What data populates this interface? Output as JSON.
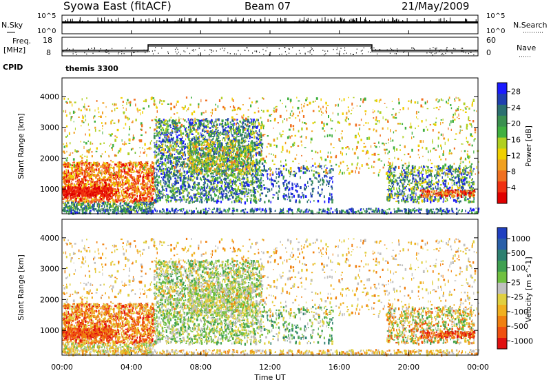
{
  "header": {
    "station": "Syowa East (fitACF)",
    "beam": "Beam 07",
    "date": "21/May/2009"
  },
  "panels": {
    "nsky": {
      "label": "N.Sky",
      "top": "10^5",
      "bottom": "10^0",
      "right_top": "10^5",
      "right_bottom": "10^0",
      "right_label": "N.Search"
    },
    "freq": {
      "label": "Freq.",
      "unit": "[MHz]",
      "top": "18",
      "bottom": "8",
      "right_top": "60",
      "right_bottom": "0",
      "right_label": "Nave"
    },
    "cpid": {
      "label": "CPID",
      "value": "themis 3300"
    }
  },
  "chart_data": [
    {
      "type": "heatmap",
      "name": "power",
      "ylabel": "Slant Range [km]",
      "xlabel": "Time UT",
      "yticks": [
        "1000",
        "2000",
        "3000",
        "4000"
      ],
      "ylim": [
        200,
        4600
      ],
      "colorbar": {
        "label": "Power [dB]",
        "ticks": [
          "4",
          "8",
          "12",
          "16",
          "20",
          "24",
          "28"
        ],
        "colors": [
          "#1a1aff",
          "#1f3fb0",
          "#2b7070",
          "#3a9050",
          "#40b040",
          "#b0d020",
          "#f0d000",
          "#f0a020",
          "#f07020",
          "#f03010",
          "#e00000"
        ]
      }
    },
    {
      "type": "heatmap",
      "name": "velocity",
      "ylabel": "Slant Range [km]",
      "xlabel": "Time UT",
      "yticks": [
        "1000",
        "2000",
        "3000",
        "4000"
      ],
      "ylim": [
        200,
        4600
      ],
      "xticks": [
        "00:00",
        "04:00",
        "08:00",
        "12:00",
        "16:00",
        "20:00",
        "00:00"
      ],
      "colorbar": {
        "label": "Velocity [m s^-1]",
        "ticks": [
          "1000",
          "500",
          "100",
          "25",
          "-25",
          "-100",
          "-500",
          "-1000"
        ],
        "colors": [
          "#2040c0",
          "#2a5fa8",
          "#2d8070",
          "#3fa050",
          "#70c040",
          "#c0c0c0",
          "#e0d040",
          "#f0b020",
          "#f08010",
          "#f05010",
          "#e01010"
        ]
      }
    }
  ],
  "axis": {
    "xlabel": "Time UT",
    "xticks": [
      "00:00",
      "04:00",
      "08:00",
      "12:00",
      "16:00",
      "20:00",
      "00:00"
    ]
  }
}
